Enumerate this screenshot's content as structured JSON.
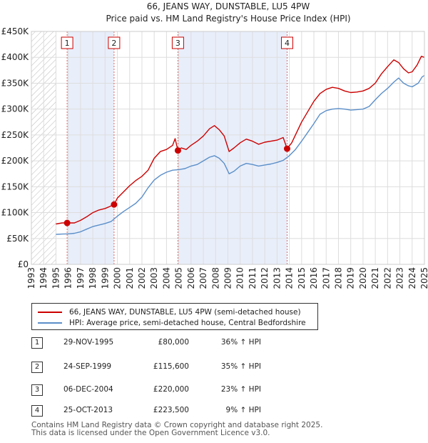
{
  "chart_data": {
    "type": "line",
    "title": "66, JEANS WAY, DUNSTABLE, LU5 4PW",
    "subtitle": "Price paid vs. HM Land Registry's House Price Index (HPI)",
    "xlabel": "",
    "ylabel": "",
    "xlim": [
      1993,
      2025
    ],
    "ylim": [
      0,
      450000
    ],
    "x_ticks": [
      "1993",
      "1994",
      "1995",
      "1996",
      "1997",
      "1998",
      "1999",
      "2000",
      "2001",
      "2002",
      "2003",
      "2004",
      "2005",
      "2006",
      "2007",
      "2008",
      "2009",
      "2010",
      "2011",
      "2012",
      "2013",
      "2014",
      "2015",
      "2016",
      "2017",
      "2018",
      "2019",
      "2020",
      "2021",
      "2022",
      "2023",
      "2024",
      "2025"
    ],
    "y_ticks": [
      {
        "value": 0,
        "label": "£0"
      },
      {
        "value": 50000,
        "label": "£50K"
      },
      {
        "value": 100000,
        "label": "£100K"
      },
      {
        "value": 150000,
        "label": "£150K"
      },
      {
        "value": 200000,
        "label": "£200K"
      },
      {
        "value": 250000,
        "label": "£250K"
      },
      {
        "value": 300000,
        "label": "£300K"
      },
      {
        "value": 350000,
        "label": "£350K"
      },
      {
        "value": 400000,
        "label": "£400K"
      },
      {
        "value": 450000,
        "label": "£450K"
      }
    ],
    "hatched_before": 1995.0,
    "shaded_periods": [
      [
        1995.91,
        1999.73
      ],
      [
        2004.93,
        2013.82
      ]
    ],
    "series": [
      {
        "name": "66, JEANS WAY, DUNSTABLE, LU5 4PW (semi-detached house)",
        "color": "#cc0000",
        "points": [
          [
            1995.0,
            78000
          ],
          [
            1995.5,
            80000
          ],
          [
            1995.91,
            80000
          ],
          [
            1996.5,
            80000
          ],
          [
            1997.0,
            85000
          ],
          [
            1997.5,
            92000
          ],
          [
            1998.0,
            100000
          ],
          [
            1998.5,
            105000
          ],
          [
            1999.0,
            108000
          ],
          [
            1999.4,
            112000
          ],
          [
            1999.73,
            115600
          ],
          [
            2000.0,
            128000
          ],
          [
            2000.5,
            140000
          ],
          [
            2001.0,
            152000
          ],
          [
            2001.5,
            162000
          ],
          [
            2002.0,
            170000
          ],
          [
            2002.5,
            182000
          ],
          [
            2003.0,
            205000
          ],
          [
            2003.5,
            218000
          ],
          [
            2004.0,
            222000
          ],
          [
            2004.5,
            230000
          ],
          [
            2004.7,
            243000
          ],
          [
            2004.93,
            220000
          ],
          [
            2005.2,
            225000
          ],
          [
            2005.6,
            222000
          ],
          [
            2006.0,
            230000
          ],
          [
            2006.5,
            238000
          ],
          [
            2007.0,
            248000
          ],
          [
            2007.5,
            262000
          ],
          [
            2007.9,
            268000
          ],
          [
            2008.3,
            260000
          ],
          [
            2008.7,
            248000
          ],
          [
            2009.1,
            218000
          ],
          [
            2009.5,
            225000
          ],
          [
            2010.0,
            235000
          ],
          [
            2010.5,
            242000
          ],
          [
            2011.0,
            238000
          ],
          [
            2011.5,
            232000
          ],
          [
            2012.0,
            236000
          ],
          [
            2012.5,
            238000
          ],
          [
            2013.0,
            240000
          ],
          [
            2013.5,
            245000
          ],
          [
            2013.82,
            223500
          ],
          [
            2014.2,
            235000
          ],
          [
            2014.6,
            255000
          ],
          [
            2015.0,
            275000
          ],
          [
            2015.5,
            295000
          ],
          [
            2016.0,
            315000
          ],
          [
            2016.5,
            330000
          ],
          [
            2017.0,
            338000
          ],
          [
            2017.5,
            342000
          ],
          [
            2018.0,
            340000
          ],
          [
            2018.5,
            335000
          ],
          [
            2019.0,
            332000
          ],
          [
            2019.5,
            333000
          ],
          [
            2020.0,
            335000
          ],
          [
            2020.5,
            340000
          ],
          [
            2021.0,
            350000
          ],
          [
            2021.5,
            368000
          ],
          [
            2022.0,
            382000
          ],
          [
            2022.5,
            395000
          ],
          [
            2022.9,
            390000
          ],
          [
            2023.3,
            378000
          ],
          [
            2023.7,
            370000
          ],
          [
            2024.0,
            372000
          ],
          [
            2024.4,
            385000
          ],
          [
            2024.75,
            402000
          ],
          [
            2025.0,
            400000
          ]
        ]
      },
      {
        "name": "HPI: Average price, semi-detached house, Central Bedfordshire",
        "color": "#5b8fc9",
        "points": [
          [
            1995.0,
            58000
          ],
          [
            1995.5,
            58500
          ],
          [
            1996.0,
            59000
          ],
          [
            1996.5,
            60000
          ],
          [
            1997.0,
            63000
          ],
          [
            1997.5,
            68000
          ],
          [
            1998.0,
            73000
          ],
          [
            1998.5,
            76000
          ],
          [
            1999.0,
            79000
          ],
          [
            1999.5,
            83000
          ],
          [
            2000.0,
            93000
          ],
          [
            2000.5,
            102000
          ],
          [
            2001.0,
            110000
          ],
          [
            2001.5,
            118000
          ],
          [
            2002.0,
            130000
          ],
          [
            2002.5,
            148000
          ],
          [
            2003.0,
            163000
          ],
          [
            2003.5,
            172000
          ],
          [
            2004.0,
            178000
          ],
          [
            2004.5,
            182000
          ],
          [
            2005.0,
            183000
          ],
          [
            2005.5,
            185000
          ],
          [
            2006.0,
            190000
          ],
          [
            2006.5,
            193000
          ],
          [
            2007.0,
            200000
          ],
          [
            2007.5,
            207000
          ],
          [
            2007.9,
            210000
          ],
          [
            2008.3,
            205000
          ],
          [
            2008.7,
            195000
          ],
          [
            2009.1,
            175000
          ],
          [
            2009.5,
            180000
          ],
          [
            2010.0,
            190000
          ],
          [
            2010.5,
            195000
          ],
          [
            2011.0,
            193000
          ],
          [
            2011.5,
            190000
          ],
          [
            2012.0,
            192000
          ],
          [
            2012.5,
            194000
          ],
          [
            2013.0,
            197000
          ],
          [
            2013.5,
            201000
          ],
          [
            2014.0,
            210000
          ],
          [
            2014.5,
            222000
          ],
          [
            2015.0,
            238000
          ],
          [
            2015.5,
            255000
          ],
          [
            2016.0,
            272000
          ],
          [
            2016.5,
            290000
          ],
          [
            2017.0,
            297000
          ],
          [
            2017.5,
            300000
          ],
          [
            2018.0,
            301000
          ],
          [
            2018.5,
            300000
          ],
          [
            2019.0,
            298000
          ],
          [
            2019.5,
            299000
          ],
          [
            2020.0,
            300000
          ],
          [
            2020.5,
            305000
          ],
          [
            2021.0,
            318000
          ],
          [
            2021.5,
            330000
          ],
          [
            2022.0,
            340000
          ],
          [
            2022.5,
            352000
          ],
          [
            2022.9,
            360000
          ],
          [
            2023.3,
            350000
          ],
          [
            2023.7,
            345000
          ],
          [
            2024.0,
            343000
          ],
          [
            2024.5,
            350000
          ],
          [
            2024.8,
            362000
          ],
          [
            2025.0,
            365000
          ]
        ]
      }
    ],
    "sales": [
      {
        "marker": "1",
        "x": 1995.91,
        "date": "29-NOV-1995",
        "price": 80000,
        "price_label": "£80,000",
        "hpi_label": "36% ↑ HPI"
      },
      {
        "marker": "2",
        "x": 1999.73,
        "date": "24-SEP-1999",
        "price": 115600,
        "price_label": "£115,600",
        "hpi_label": "35% ↑ HPI"
      },
      {
        "marker": "3",
        "x": 2004.93,
        "date": "06-DEC-2004",
        "price": 220000,
        "price_label": "£220,000",
        "hpi_label": "23% ↑ HPI"
      },
      {
        "marker": "4",
        "x": 2013.82,
        "date": "25-OCT-2013",
        "price": 223500,
        "price_label": "£223,500",
        "hpi_label": "9% ↑ HPI"
      }
    ]
  },
  "legend": {
    "property_label": "66, JEANS WAY, DUNSTABLE, LU5 4PW (semi-detached house)",
    "hpi_label": "HPI: Average price, semi-detached house, Central Bedfordshire",
    "property_color": "#cc0000",
    "hpi_color": "#5b8fc9"
  },
  "footer": {
    "line1": "Contains HM Land Registry data © Crown copyright and database right 2025.",
    "line2": "This data is licensed under the Open Government Licence v3.0."
  }
}
